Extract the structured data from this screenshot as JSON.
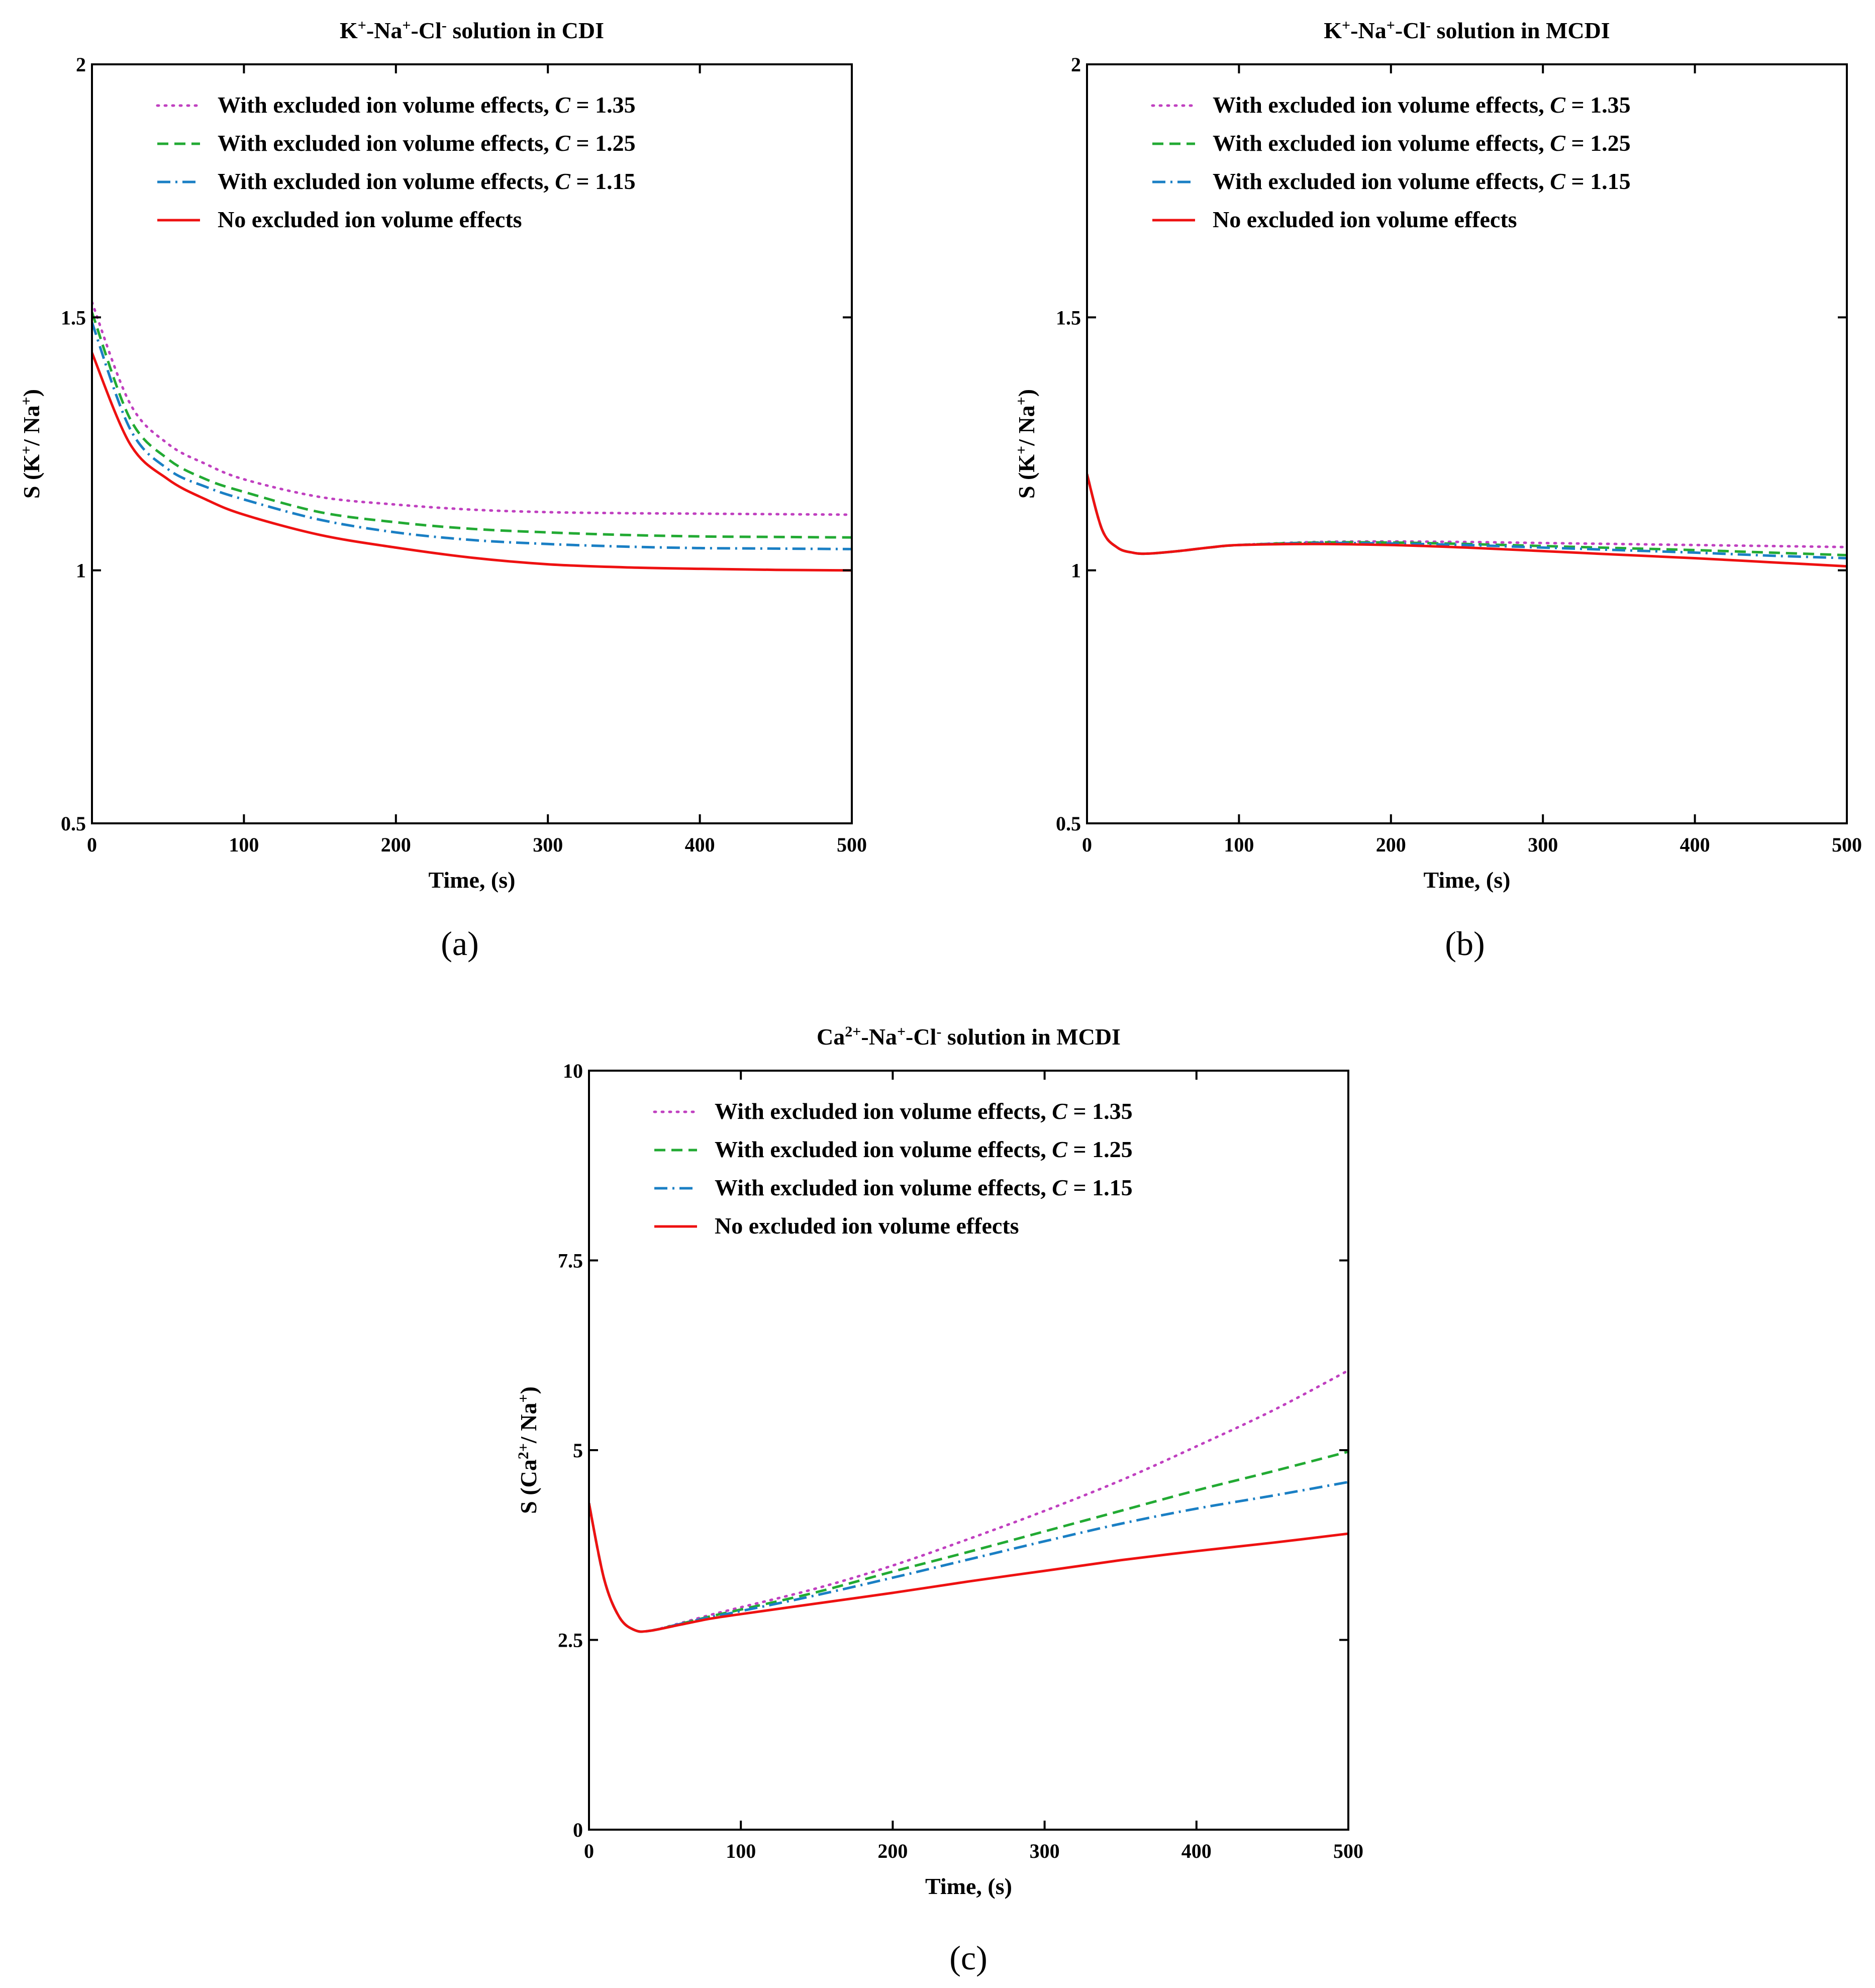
{
  "figure": {
    "panel_labels": [
      "(a)",
      "(b)",
      "(c)"
    ]
  },
  "chart_data": [
    {
      "type": "line",
      "title": "K+-Na+-Cl- solution in CDI",
      "title_parts": {
        "s1": "K",
        "p1": "+",
        "s2": "-Na",
        "p2": "+",
        "s3": "-Cl",
        "p3": "-",
        "s4": " solution in CDI"
      },
      "xlabel": "Time, (s)",
      "ylabel": "S (K+/ Na+)",
      "ylabel_parts": {
        "s1": "S (K",
        "p1": "+",
        "s2": "/ Na",
        "p2": "+",
        "s3": ")"
      },
      "xlim": [
        0,
        500
      ],
      "ylim": [
        0.5,
        2
      ],
      "xticks": [
        "0",
        "100",
        "200",
        "300",
        "400",
        "500"
      ],
      "yticks": [
        "0.5",
        "1",
        "1.5",
        "2"
      ],
      "legend": {
        "prefix": "With excluded ion volume effects, ",
        "cvar": "C",
        "entries": [
          " = 1.35",
          " = 1.25",
          " = 1.15"
        ],
        "none": "No excluded ion volume effects"
      },
      "x": [
        0,
        25,
        50,
        75,
        100,
        150,
        200,
        250,
        300,
        350,
        400,
        450,
        500
      ],
      "series": [
        {
          "name": "With excluded ion volume effects, C = 1.35",
          "color": "#c040c0",
          "dash": "dot",
          "values": [
            1.53,
            1.33,
            1.25,
            1.21,
            1.18,
            1.145,
            1.13,
            1.12,
            1.115,
            1.113,
            1.112,
            1.111,
            1.11
          ]
        },
        {
          "name": "With excluded ion volume effects, C = 1.25",
          "color": "#22aa33",
          "dash": "dash",
          "values": [
            1.51,
            1.3,
            1.22,
            1.18,
            1.155,
            1.115,
            1.095,
            1.082,
            1.075,
            1.07,
            1.067,
            1.066,
            1.065
          ]
        },
        {
          "name": "With excluded ion volume effects, C = 1.15",
          "color": "#1a7fc4",
          "dash": "dashdot",
          "values": [
            1.49,
            1.28,
            1.2,
            1.165,
            1.14,
            1.1,
            1.075,
            1.06,
            1.052,
            1.047,
            1.044,
            1.043,
            1.042
          ]
        },
        {
          "name": "No excluded ion volume effects",
          "color": "#ee1111",
          "dash": "solid",
          "values": [
            1.43,
            1.25,
            1.18,
            1.14,
            1.11,
            1.07,
            1.045,
            1.025,
            1.012,
            1.006,
            1.003,
            1.001,
            1.0
          ]
        }
      ]
    },
    {
      "type": "line",
      "title": "K+-Na+-Cl- solution in MCDI",
      "title_parts": {
        "s1": "K",
        "p1": "+",
        "s2": "-Na",
        "p2": "+",
        "s3": "-Cl",
        "p3": "-",
        "s4": " solution in MCDI"
      },
      "xlabel": "Time, (s)",
      "ylabel": "S (K+/ Na+)",
      "ylabel_parts": {
        "s1": "S (K",
        "p1": "+",
        "s2": "/ Na",
        "p2": "+",
        "s3": ")"
      },
      "xlim": [
        0,
        500
      ],
      "ylim": [
        0.5,
        2
      ],
      "xticks": [
        "0",
        "100",
        "200",
        "300",
        "400",
        "500"
      ],
      "yticks": [
        "0.5",
        "1",
        "1.5",
        "2"
      ],
      "legend": {
        "prefix": "With excluded ion volume effects, ",
        "cvar": "C",
        "entries": [
          " = 1.35",
          " = 1.25",
          " = 1.15"
        ],
        "none": "No excluded ion volume effects"
      },
      "x": [
        0,
        10,
        20,
        30,
        40,
        60,
        80,
        100,
        150,
        200,
        250,
        300,
        350,
        400,
        450,
        500
      ],
      "series": [
        {
          "name": "With excluded ion volume effects, C = 1.35",
          "color": "#c040c0",
          "dash": "dot",
          "values": [
            1.19,
            1.08,
            1.045,
            1.035,
            1.033,
            1.038,
            1.045,
            1.05,
            1.056,
            1.057,
            1.056,
            1.054,
            1.052,
            1.05,
            1.048,
            1.046
          ]
        },
        {
          "name": "With excluded ion volume effects, C = 1.25",
          "color": "#22aa33",
          "dash": "dash",
          "values": [
            1.19,
            1.08,
            1.045,
            1.035,
            1.033,
            1.038,
            1.045,
            1.05,
            1.055,
            1.055,
            1.052,
            1.048,
            1.044,
            1.04,
            1.035,
            1.03
          ]
        },
        {
          "name": "With excluded ion volume effects, C = 1.15",
          "color": "#1a7fc4",
          "dash": "dashdot",
          "values": [
            1.19,
            1.08,
            1.045,
            1.035,
            1.033,
            1.038,
            1.045,
            1.05,
            1.054,
            1.053,
            1.05,
            1.045,
            1.04,
            1.035,
            1.029,
            1.024
          ]
        },
        {
          "name": "No excluded ion volume effects",
          "color": "#ee1111",
          "dash": "solid",
          "values": [
            1.19,
            1.08,
            1.045,
            1.035,
            1.033,
            1.038,
            1.045,
            1.05,
            1.052,
            1.05,
            1.045,
            1.038,
            1.031,
            1.024,
            1.016,
            1.008
          ]
        }
      ]
    },
    {
      "type": "line",
      "title": "Ca2+-Na+-Cl- solution in MCDI",
      "title_parts": {
        "s1": "Ca",
        "p1": "2+",
        "s2": "-Na",
        "p2": "+",
        "s3": "-Cl",
        "p3": "-",
        "s4": " solution in MCDI"
      },
      "xlabel": "Time, (s)",
      "ylabel": "S (Ca2+/ Na+)",
      "ylabel_parts": {
        "s1": "S (Ca",
        "p1": "2+",
        "s2": "/ Na",
        "p2": "+",
        "s3": ")"
      },
      "xlim": [
        0,
        500
      ],
      "ylim": [
        0,
        10
      ],
      "xticks": [
        "0",
        "100",
        "200",
        "300",
        "400",
        "500"
      ],
      "yticks": [
        "0",
        "2.5",
        "5",
        "7.5",
        "10"
      ],
      "legend": {
        "prefix": "With excluded ion volume effects, ",
        "cvar": "C",
        "entries": [
          " = 1.35",
          " = 1.25",
          " = 1.15"
        ],
        "none": "No excluded ion volume effects"
      },
      "x": [
        0,
        10,
        20,
        30,
        40,
        60,
        80,
        100,
        150,
        200,
        250,
        300,
        350,
        400,
        450,
        500
      ],
      "series": [
        {
          "name": "With excluded ion volume effects, C = 1.35",
          "color": "#c040c0",
          "dash": "dot",
          "values": [
            4.3,
            3.3,
            2.8,
            2.63,
            2.62,
            2.72,
            2.83,
            2.93,
            3.18,
            3.48,
            3.83,
            4.2,
            4.6,
            5.05,
            5.52,
            6.05
          ]
        },
        {
          "name": "With excluded ion volume effects, C = 1.25",
          "color": "#22aa33",
          "dash": "dash",
          "values": [
            4.3,
            3.3,
            2.8,
            2.63,
            2.62,
            2.71,
            2.81,
            2.9,
            3.13,
            3.4,
            3.66,
            3.93,
            4.2,
            4.47,
            4.72,
            4.98
          ]
        },
        {
          "name": "With excluded ion volume effects, C = 1.15",
          "color": "#1a7fc4",
          "dash": "dashdot",
          "values": [
            4.3,
            3.3,
            2.8,
            2.63,
            2.62,
            2.71,
            2.8,
            2.88,
            3.09,
            3.32,
            3.56,
            3.8,
            4.03,
            4.23,
            4.4,
            4.58
          ]
        },
        {
          "name": "No excluded ion volume effects",
          "color": "#ee1111",
          "dash": "solid",
          "values": [
            4.3,
            3.3,
            2.8,
            2.63,
            2.62,
            2.7,
            2.78,
            2.84,
            2.98,
            3.12,
            3.27,
            3.41,
            3.55,
            3.67,
            3.78,
            3.9
          ]
        }
      ]
    }
  ]
}
